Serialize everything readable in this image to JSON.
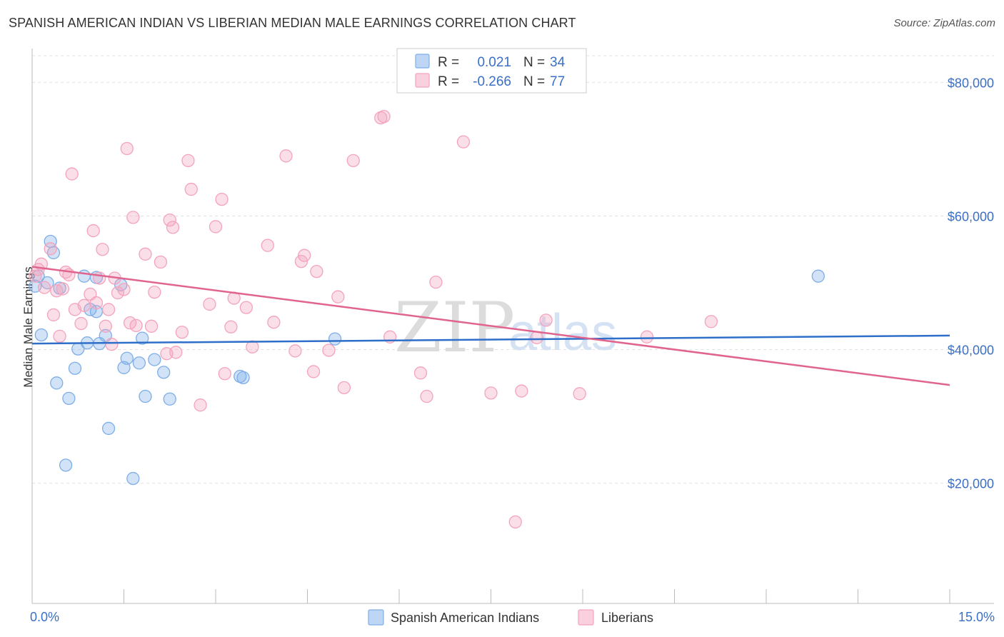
{
  "title": "SPANISH AMERICAN INDIAN VS LIBERIAN MEDIAN MALE EARNINGS CORRELATION CHART",
  "source": "Source: ZipAtlas.com",
  "watermark": {
    "zip": "ZIP",
    "atlas": "atlas"
  },
  "chart_data": {
    "type": "scatter",
    "ylabel": "Median Male Earnings",
    "xlim": [
      0,
      15
    ],
    "ylim": [
      2000,
      84000
    ],
    "x_tick_labels": [
      "0.0%",
      "15.0%"
    ],
    "y_ticks": [
      {
        "value": 20000,
        "label": "$20,000"
      },
      {
        "value": 40000,
        "label": "$40,000"
      },
      {
        "value": 60000,
        "label": "$60,000"
      },
      {
        "value": 80000,
        "label": "$80,000"
      }
    ],
    "grid": true,
    "legend_position": "bottom",
    "stats": [
      {
        "r_label": "R =",
        "r": "0.021",
        "n_label": "N =",
        "n": "34"
      },
      {
        "r_label": "R =",
        "r": "-0.266",
        "n_label": "N =",
        "n": "77"
      }
    ],
    "series": [
      {
        "name": "Spanish American Indians",
        "color": "#7eaee8",
        "line_color": "#2e6fc9",
        "trend": {
          "x": [
            0,
            15
          ],
          "y": [
            40900,
            42100
          ]
        },
        "points": [
          [
            0.05,
            49500
          ],
          [
            0.1,
            51000
          ],
          [
            0.15,
            42200
          ],
          [
            0.25,
            50000
          ],
          [
            0.3,
            56200
          ],
          [
            0.35,
            54500
          ],
          [
            0.4,
            35000
          ],
          [
            0.45,
            49200
          ],
          [
            0.55,
            22700
          ],
          [
            0.6,
            32700
          ],
          [
            0.7,
            37200
          ],
          [
            0.75,
            40100
          ],
          [
            0.85,
            51000
          ],
          [
            0.9,
            41000
          ],
          [
            0.95,
            46000
          ],
          [
            1.05,
            45700
          ],
          [
            1.05,
            50800
          ],
          [
            1.1,
            40900
          ],
          [
            1.2,
            42100
          ],
          [
            1.25,
            28200
          ],
          [
            1.45,
            49700
          ],
          [
            1.5,
            37300
          ],
          [
            1.55,
            38700
          ],
          [
            1.65,
            20700
          ],
          [
            1.75,
            38000
          ],
          [
            1.8,
            41700
          ],
          [
            1.85,
            33000
          ],
          [
            2.0,
            38500
          ],
          [
            2.15,
            36600
          ],
          [
            2.25,
            32600
          ],
          [
            3.4,
            36000
          ],
          [
            3.45,
            35800
          ],
          [
            4.95,
            41600
          ],
          [
            12.85,
            51000
          ]
        ]
      },
      {
        "name": "Liberians",
        "color": "#f4a3bd",
        "line_color": "#e0648e",
        "trend": {
          "x": [
            0,
            15
          ],
          "y": [
            52400,
            34700
          ]
        },
        "points": [
          [
            0.05,
            51000
          ],
          [
            0.1,
            52000
          ],
          [
            0.15,
            52800
          ],
          [
            0.2,
            49300
          ],
          [
            0.3,
            55100
          ],
          [
            0.35,
            45200
          ],
          [
            0.4,
            48800
          ],
          [
            0.5,
            49100
          ],
          [
            0.55,
            51600
          ],
          [
            0.6,
            51200
          ],
          [
            0.65,
            66300
          ],
          [
            0.7,
            46000
          ],
          [
            0.8,
            43900
          ],
          [
            0.85,
            46600
          ],
          [
            0.95,
            48300
          ],
          [
            1.0,
            57800
          ],
          [
            1.1,
            50700
          ],
          [
            1.15,
            55000
          ],
          [
            1.25,
            46000
          ],
          [
            1.3,
            40800
          ],
          [
            1.35,
            50700
          ],
          [
            1.4,
            48500
          ],
          [
            1.5,
            49000
          ],
          [
            1.55,
            70100
          ],
          [
            1.6,
            44000
          ],
          [
            1.65,
            59800
          ],
          [
            1.7,
            43600
          ],
          [
            1.85,
            54300
          ],
          [
            1.95,
            43500
          ],
          [
            2.0,
            48600
          ],
          [
            2.1,
            53100
          ],
          [
            2.2,
            39400
          ],
          [
            2.25,
            59400
          ],
          [
            2.3,
            58300
          ],
          [
            2.35,
            39600
          ],
          [
            2.45,
            42600
          ],
          [
            2.55,
            68300
          ],
          [
            2.6,
            64000
          ],
          [
            2.75,
            31700
          ],
          [
            2.9,
            46800
          ],
          [
            3.0,
            58400
          ],
          [
            3.1,
            62500
          ],
          [
            3.15,
            36400
          ],
          [
            3.25,
            43400
          ],
          [
            3.3,
            47700
          ],
          [
            3.5,
            46300
          ],
          [
            3.6,
            40400
          ],
          [
            3.85,
            55600
          ],
          [
            3.95,
            44100
          ],
          [
            4.15,
            69000
          ],
          [
            4.3,
            39800
          ],
          [
            4.4,
            53200
          ],
          [
            4.45,
            54100
          ],
          [
            4.6,
            36700
          ],
          [
            4.65,
            51700
          ],
          [
            4.85,
            39900
          ],
          [
            5.0,
            47900
          ],
          [
            5.1,
            34300
          ],
          [
            5.25,
            68300
          ],
          [
            5.7,
            74700
          ],
          [
            5.75,
            74900
          ],
          [
            5.85,
            41900
          ],
          [
            6.35,
            36500
          ],
          [
            6.45,
            33000
          ],
          [
            6.6,
            50100
          ],
          [
            7.05,
            71100
          ],
          [
            7.5,
            33500
          ],
          [
            7.9,
            14200
          ],
          [
            8.0,
            33800
          ],
          [
            8.25,
            41800
          ],
          [
            8.4,
            44400
          ],
          [
            8.95,
            33400
          ],
          [
            10.05,
            41900
          ],
          [
            11.1,
            44200
          ],
          [
            1.05,
            47000
          ],
          [
            1.2,
            43500
          ],
          [
            0.45,
            42000
          ]
        ]
      }
    ]
  }
}
